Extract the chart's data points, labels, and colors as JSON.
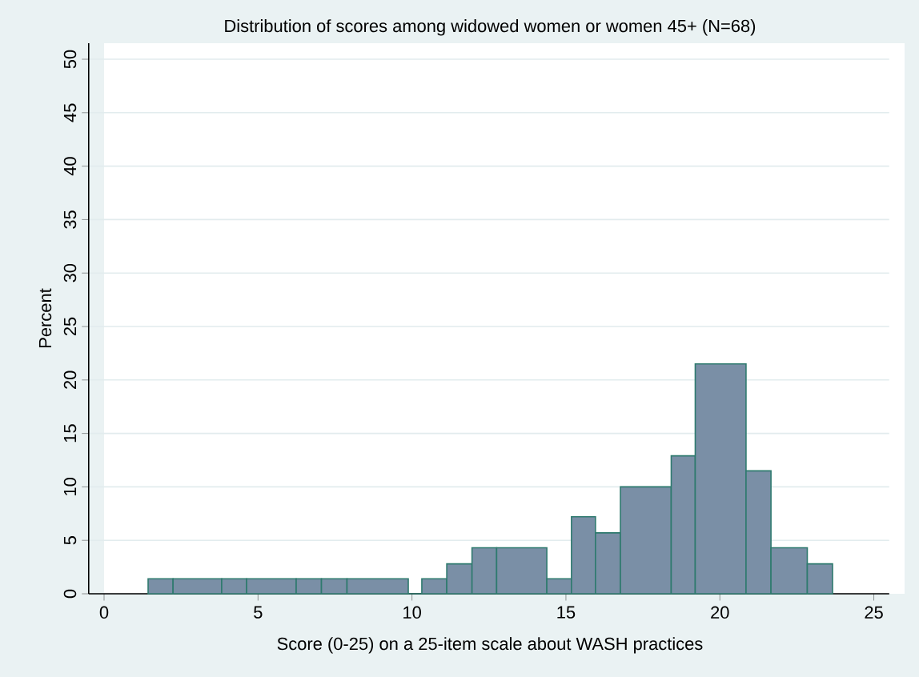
{
  "chart_data": {
    "type": "histogram",
    "title": "Distribution of scores among widowed women or women 45+ (N=68)",
    "xlabel": "Score (0-25) on a 25-item scale about WASH practices",
    "ylabel": "Percent",
    "bins": [
      1.43,
      2.24,
      3.82,
      4.63,
      6.24,
      7.06,
      7.89,
      9.88,
      10.32,
      11.13,
      11.95,
      12.75,
      14.38,
      15.18,
      15.96,
      16.77,
      18.42,
      19.2,
      20.85,
      21.66,
      22.84,
      23.66
    ],
    "values": [
      1.4,
      1.4,
      1.4,
      1.4,
      1.4,
      1.4,
      1.4,
      0,
      1.4,
      2.8,
      4.3,
      4.3,
      1.4,
      7.2,
      5.7,
      10.0,
      12.9,
      21.5,
      11.5,
      4.3,
      2.8
    ],
    "color": "#7a8fa6",
    "xlim": [
      -0.5,
      25.5
    ],
    "xticks": [
      0,
      5,
      10,
      15,
      20,
      25
    ],
    "ylim": [
      0,
      51.5
    ],
    "yticks": [
      0,
      5,
      10,
      15,
      20,
      25,
      30,
      35,
      40,
      45,
      50
    ],
    "grid": "y"
  }
}
